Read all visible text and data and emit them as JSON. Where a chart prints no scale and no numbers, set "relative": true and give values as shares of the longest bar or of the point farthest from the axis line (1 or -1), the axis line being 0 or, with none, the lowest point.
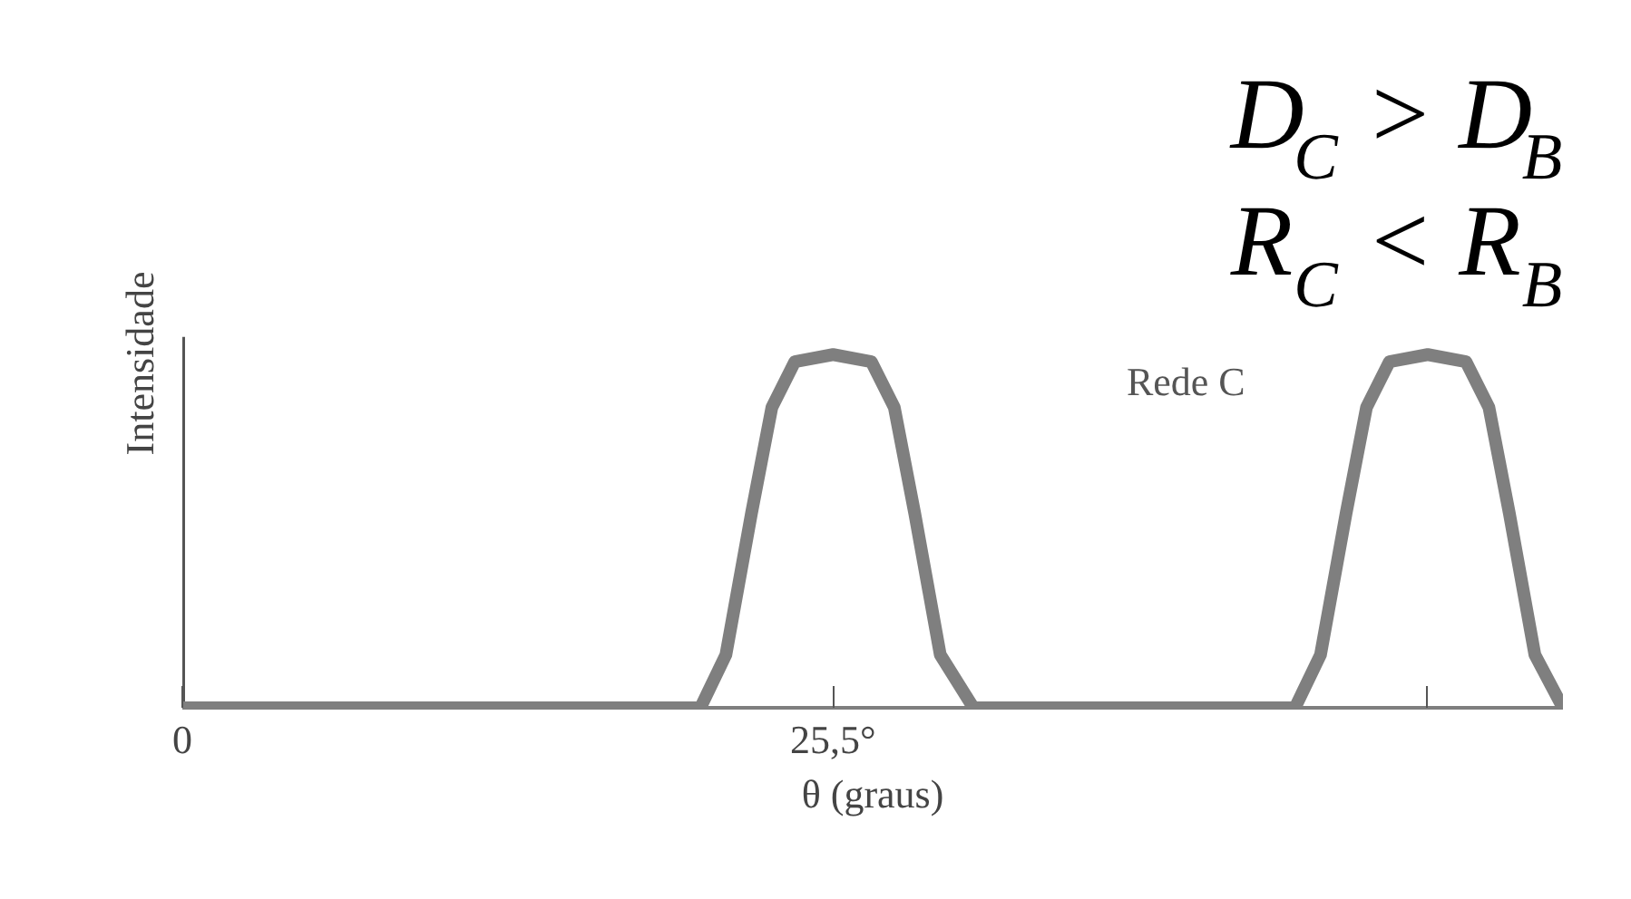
{
  "chart_data": {
    "type": "line",
    "relative": true,
    "xlabel": "θ (graus)",
    "ylabel": "Intensidade",
    "annotations": [
      "D$_{C}$ > D$_{B}$",
      "R$_{C}$ < R$_{B}$",
      "Rede C"
    ],
    "xlim": [
      0,
      54.1
    ],
    "xticks": [
      0,
      {
        "value": 25.5,
        "label": "25,5°"
      },
      {
        "value": 48.8,
        "label": null
      }
    ],
    "grid": false,
    "marker": "none",
    "line_style": "solid",
    "series": [
      {
        "color": "#7f7f7f",
        "x": [
          0,
          20.3,
          21.3,
          22.3,
          23.1,
          24.0,
          25.5,
          27.0,
          27.9,
          28.7,
          29.7,
          31.0,
          43.6,
          44.6,
          45.6,
          46.4,
          47.3,
          48.8,
          50.3,
          51.2,
          52.0,
          53.0,
          54.1
        ],
        "values": [
          0,
          0,
          0.15,
          0.55,
          0.85,
          0.98,
          1,
          0.98,
          0.85,
          0.55,
          0.15,
          0,
          0,
          0.15,
          0.55,
          0.85,
          0.98,
          1,
          0.98,
          0.85,
          0.55,
          0.15,
          0
        ]
      }
    ]
  }
}
